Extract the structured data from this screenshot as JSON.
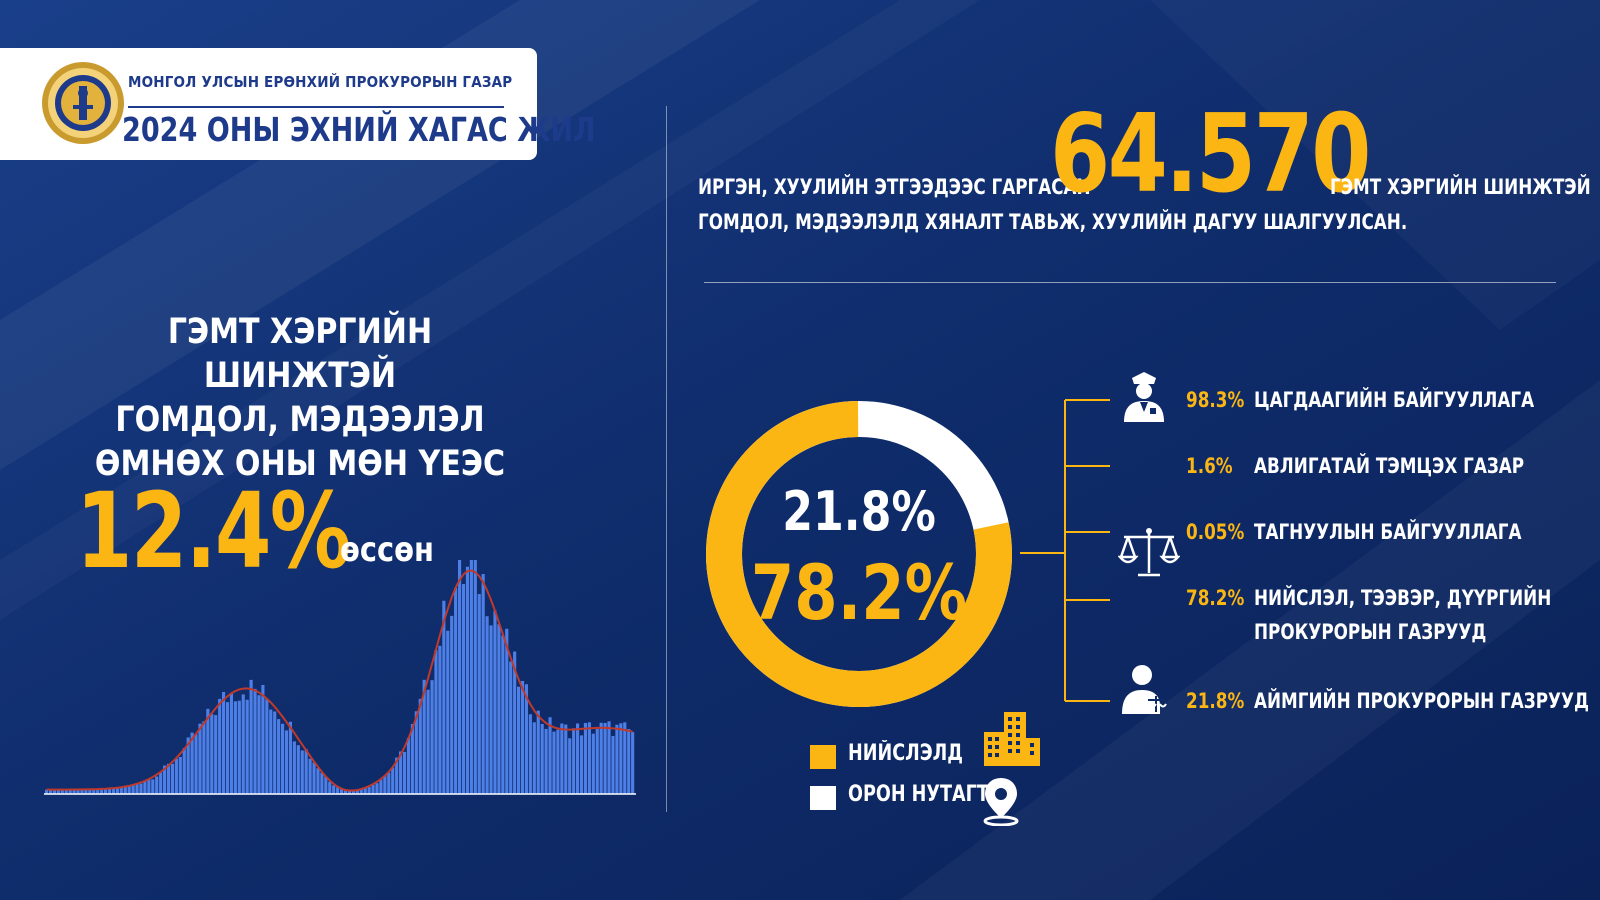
{
  "header": {
    "org_name": "МОНГОЛ УЛСЫН ЕРӨНХИЙ ПРОКУРОРЫН ГАЗАР",
    "period": "2024 ОНЫ ЭХНИЙ ХАГАС ЖИЛ",
    "emblem_icon": "soyombo-emblem-icon"
  },
  "growth": {
    "title_lines": [
      "ГЭМТ ХЭРГИЙН ШИНЖТЭЙ",
      "ГОМДОЛ, МЭДЭЭЛЭЛ",
      "ӨМНӨХ ОНЫ МӨН ҮЕЭС"
    ],
    "value": "12.4%",
    "word": "өссөн"
  },
  "statement": {
    "pre": "ИРГЭН, ХУУЛИЙН ЭТГЭЭДЭЭС ГАРГАСАН",
    "number": "64.570",
    "post": "ГЭМТ ХЭРГИЙН ШИНЖТЭЙ",
    "line2": "ГОМДОЛ, МЭДЭЭЛЭЛД ХЯНАЛТ ТАВЬЖ, ХУУЛИЙН ДАГУУ ШАЛГУУЛСАН."
  },
  "donut": {
    "rural_label": "21.8%",
    "capital_label": "78.2%",
    "segments": [
      {
        "key": "capital",
        "value": 78.2,
        "color": "#fbb614"
      },
      {
        "key": "rural",
        "value": 21.8,
        "color": "#ffffff"
      }
    ]
  },
  "legend": [
    {
      "label": "НИЙСЛЭЛД",
      "color": "#fbb614",
      "icon": "city-buildings-icon"
    },
    {
      "label": "ОРОН НУТАГТ",
      "color": "#ffffff",
      "icon": "location-pin-icon"
    }
  ],
  "breakdown": [
    {
      "pct": "98.3%",
      "label_lines": [
        "ЦАГДААГИЙН БАЙГУУЛЛАГА"
      ],
      "icon": "police-officer-icon"
    },
    {
      "pct": "1.6%",
      "label_lines": [
        "АВЛИГАТАЙ ТЭМЦЭХ ГАЗАР"
      ],
      "icon": ""
    },
    {
      "pct": "0.05%",
      "label_lines": [
        "ТАГНУУЛЫН БАЙГУУЛЛАГА"
      ],
      "icon": "justice-scales-icon"
    },
    {
      "pct": "78.2%",
      "label_lines": [
        "НИЙСЛЭЛ, ТЭЭВЭР, ДҮҮРГИЙН",
        "ПРОКУРОРЫН ГАЗРУУД"
      ],
      "icon": ""
    },
    {
      "pct": "21.8%",
      "label_lines": [
        "АЙМГИЙН ПРОКУРОРЫН ГАЗРУУД"
      ],
      "icon": "prosecutor-icon"
    }
  ],
  "colors": {
    "accent": "#fbb614",
    "background": "#0d2a66",
    "bars": "#4d7fe6",
    "trend_line": "#c0392b",
    "header_text": "#1e3a8a"
  }
}
